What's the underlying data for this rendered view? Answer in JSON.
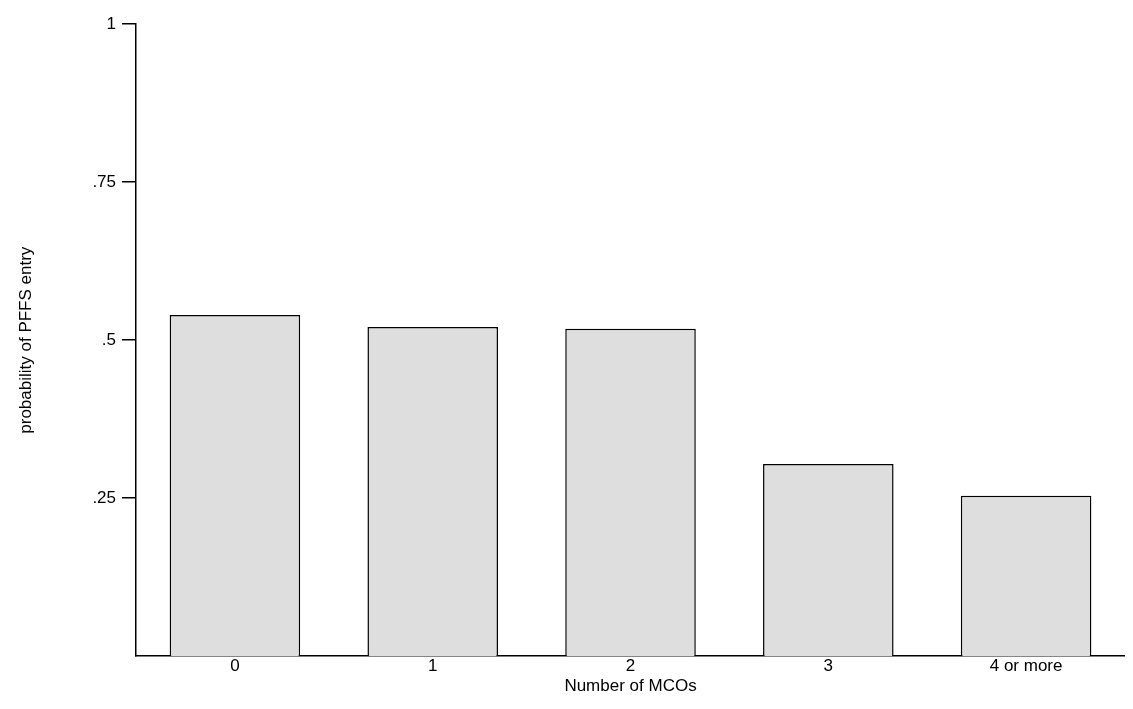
{
  "chart_data": {
    "type": "bar",
    "xlabel": "Number of MCOs",
    "ylabel": "probability of PFFS entry",
    "categories": [
      "0",
      "1",
      "2",
      "3",
      "4 or more"
    ],
    "values": [
      0.54,
      0.521,
      0.518,
      0.304,
      0.254
    ],
    "color": "#dedede",
    "ylim": [
      0,
      1
    ],
    "yticks": [
      {
        "value": 0.25,
        "label": ".25"
      },
      {
        "value": 0.5,
        "label": ".5"
      },
      {
        "value": 0.75,
        "label": ".75"
      },
      {
        "value": 1,
        "label": "1"
      }
    ],
    "grid": false,
    "legend": false
  }
}
